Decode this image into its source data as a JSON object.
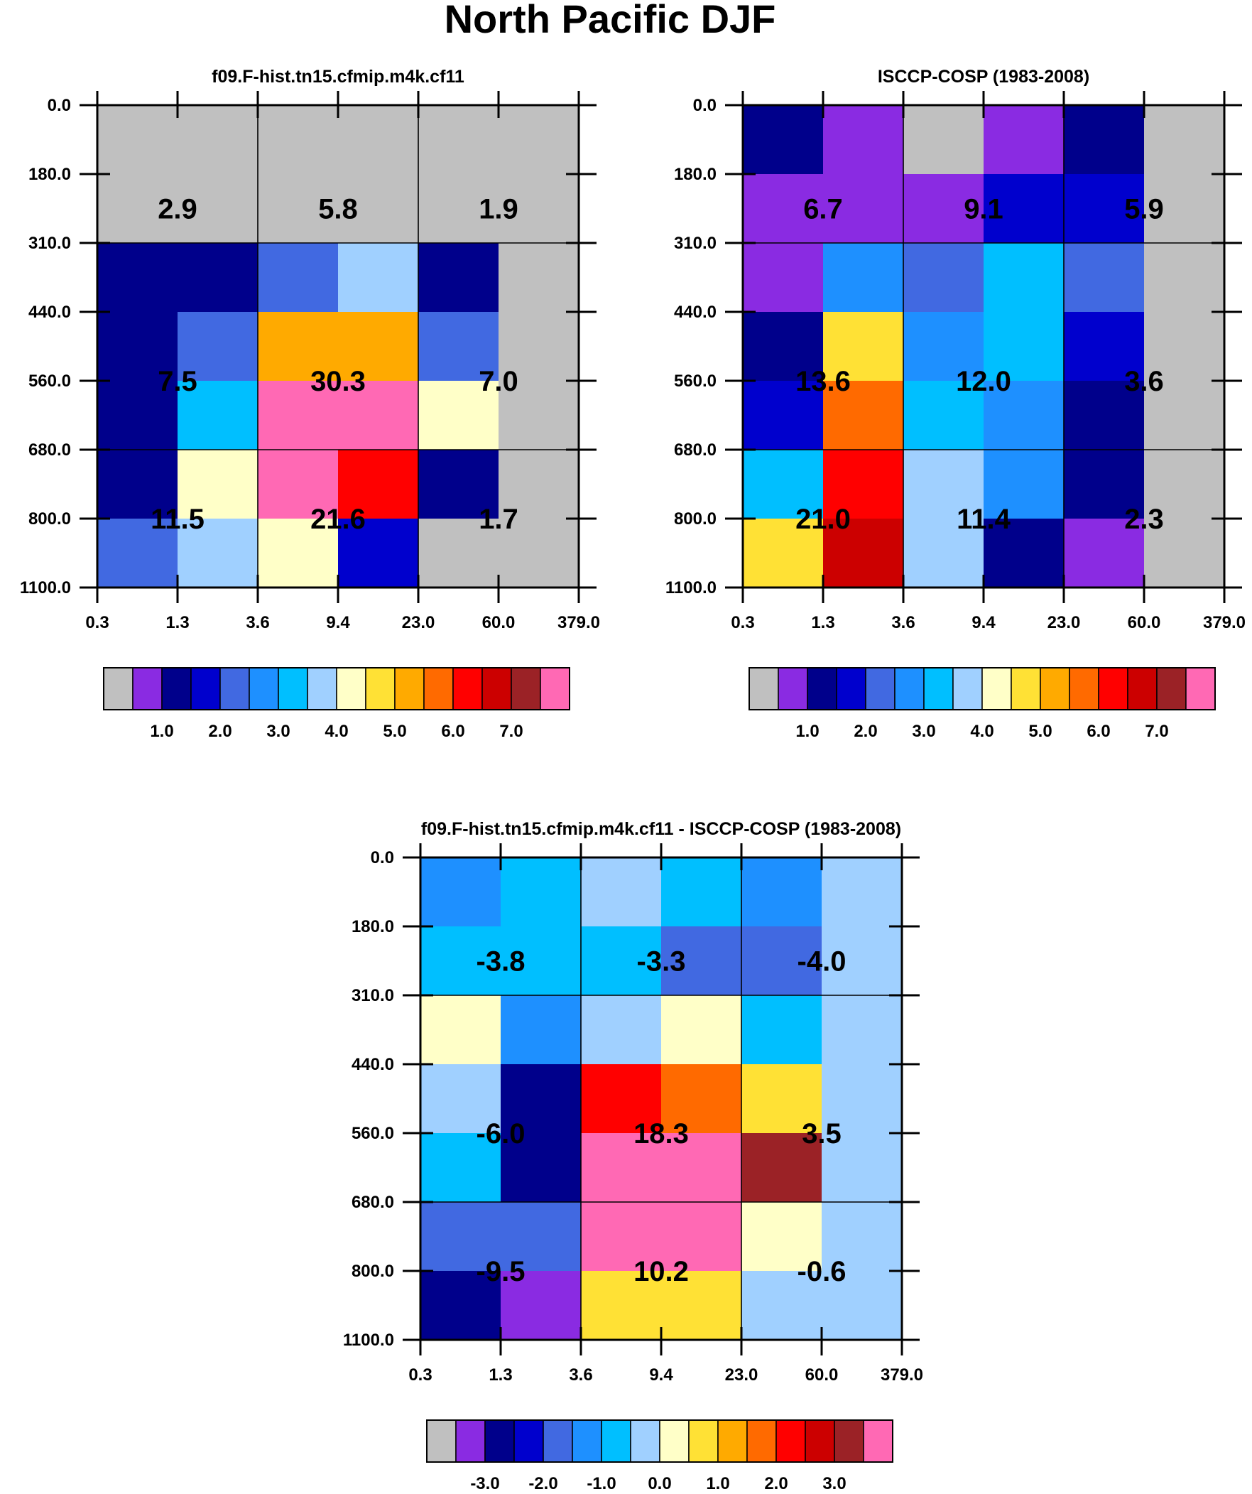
{
  "figure_title": "North Pacific DJF",
  "colors": {
    "gray": "#c0c0c0",
    "purple": "#8a2be2",
    "navy": "#00008b",
    "blue": "#0000cd",
    "royal": "#4169e1",
    "dodger": "#1e90ff",
    "sky": "#00bfff",
    "light_sky": "#a0d0ff",
    "ivory": "#ffffc8",
    "gold": "#ffe135",
    "orange": "#ffaa00",
    "dark_orange": "#ff6a00",
    "red": "#ff0000",
    "crimson": "#cc0000",
    "brown": "#9b2226",
    "pink": "#ff69b4"
  },
  "chart_data": [
    {
      "type": "heatmap",
      "title": "f09.F-hist.tn15.cfmip.m4k.cf11",
      "xticks": [
        "0.3",
        "1.3",
        "3.6",
        "9.4",
        "23.0",
        "60.0",
        "379.0"
      ],
      "yticks": [
        "0.0",
        "180.0",
        "310.0",
        "440.0",
        "560.0",
        "680.0",
        "800.0",
        "1100.0"
      ],
      "cells": [
        [
          "gray",
          "gray",
          "gray",
          "gray",
          "gray",
          "gray"
        ],
        [
          "gray",
          "gray",
          "gray",
          "gray",
          "gray",
          "gray"
        ],
        [
          "navy",
          "navy",
          "royal",
          "light_sky",
          "navy",
          "gray"
        ],
        [
          "navy",
          "royal",
          "orange",
          "orange",
          "royal",
          "gray"
        ],
        [
          "navy",
          "sky",
          "pink",
          "pink",
          "ivory",
          "gray"
        ],
        [
          "navy",
          "ivory",
          "pink",
          "red",
          "navy",
          "gray"
        ],
        [
          "royal",
          "light_sky",
          "ivory",
          "blue",
          "gray",
          "gray"
        ]
      ],
      "block_values": [
        [
          "2.9",
          "5.8",
          "1.9"
        ],
        [
          "7.5",
          "30.3",
          "7.0"
        ],
        [
          "11.5",
          "21.6",
          "1.7"
        ]
      ],
      "colorbar": {
        "colors": [
          "gray",
          "purple",
          "navy",
          "blue",
          "royal",
          "dodger",
          "sky",
          "light_sky",
          "ivory",
          "gold",
          "orange",
          "dark_orange",
          "red",
          "crimson",
          "brown",
          "pink"
        ],
        "labels": [
          "1.0",
          "2.0",
          "3.0",
          "4.0",
          "5.0",
          "6.0",
          "7.0"
        ]
      }
    },
    {
      "type": "heatmap",
      "title": "ISCCP-COSP (1983-2008)",
      "xticks": [
        "0.3",
        "1.3",
        "3.6",
        "9.4",
        "23.0",
        "60.0",
        "379.0"
      ],
      "yticks": [
        "0.0",
        "180.0",
        "310.0",
        "440.0",
        "560.0",
        "680.0",
        "800.0",
        "1100.0"
      ],
      "cells": [
        [
          "navy",
          "purple",
          "gray",
          "purple",
          "navy",
          "gray"
        ],
        [
          "purple",
          "purple",
          "purple",
          "blue",
          "blue",
          "gray"
        ],
        [
          "purple",
          "dodger",
          "royal",
          "sky",
          "royal",
          "gray"
        ],
        [
          "navy",
          "gold",
          "dodger",
          "sky",
          "blue",
          "gray"
        ],
        [
          "blue",
          "dark_orange",
          "sky",
          "dodger",
          "navy",
          "gray"
        ],
        [
          "sky",
          "red",
          "light_sky",
          "dodger",
          "navy",
          "gray"
        ],
        [
          "gold",
          "crimson",
          "light_sky",
          "navy",
          "purple",
          "gray"
        ]
      ],
      "block_values": [
        [
          "6.7",
          "9.1",
          "5.9"
        ],
        [
          "13.6",
          "12.0",
          "3.6"
        ],
        [
          "21.0",
          "11.4",
          "2.3"
        ]
      ],
      "colorbar": {
        "colors": [
          "gray",
          "purple",
          "navy",
          "blue",
          "royal",
          "dodger",
          "sky",
          "light_sky",
          "ivory",
          "gold",
          "orange",
          "dark_orange",
          "red",
          "crimson",
          "brown",
          "pink"
        ],
        "labels": [
          "1.0",
          "2.0",
          "3.0",
          "4.0",
          "5.0",
          "6.0",
          "7.0"
        ]
      }
    },
    {
      "type": "heatmap",
      "title": "f09.F-hist.tn15.cfmip.m4k.cf11 - ISCCP-COSP (1983-2008)",
      "xticks": [
        "0.3",
        "1.3",
        "3.6",
        "9.4",
        "23.0",
        "60.0",
        "379.0"
      ],
      "yticks": [
        "0.0",
        "180.0",
        "310.0",
        "440.0",
        "560.0",
        "680.0",
        "800.0",
        "1100.0"
      ],
      "cells": [
        [
          "dodger",
          "sky",
          "light_sky",
          "sky",
          "dodger",
          "light_sky"
        ],
        [
          "sky",
          "sky",
          "sky",
          "royal",
          "royal",
          "light_sky"
        ],
        [
          "ivory",
          "dodger",
          "light_sky",
          "ivory",
          "sky",
          "light_sky"
        ],
        [
          "light_sky",
          "navy",
          "red",
          "dark_orange",
          "gold",
          "light_sky"
        ],
        [
          "sky",
          "navy",
          "pink",
          "pink",
          "brown",
          "light_sky"
        ],
        [
          "royal",
          "royal",
          "pink",
          "pink",
          "ivory",
          "light_sky"
        ],
        [
          "navy",
          "purple",
          "gold",
          "gold",
          "light_sky",
          "light_sky"
        ]
      ],
      "block_values": [
        [
          "-3.8",
          "-3.3",
          "-4.0"
        ],
        [
          "-6.0",
          "18.3",
          "3.5"
        ],
        [
          "-9.5",
          "10.2",
          "-0.6"
        ]
      ],
      "colorbar": {
        "colors": [
          "gray",
          "purple",
          "navy",
          "blue",
          "royal",
          "dodger",
          "sky",
          "light_sky",
          "ivory",
          "gold",
          "orange",
          "dark_orange",
          "red",
          "crimson",
          "brown",
          "pink"
        ],
        "labels": [
          "-3.0",
          "-2.0",
          "-1.0",
          "0.0",
          "1.0",
          "2.0",
          "3.0"
        ]
      }
    }
  ]
}
